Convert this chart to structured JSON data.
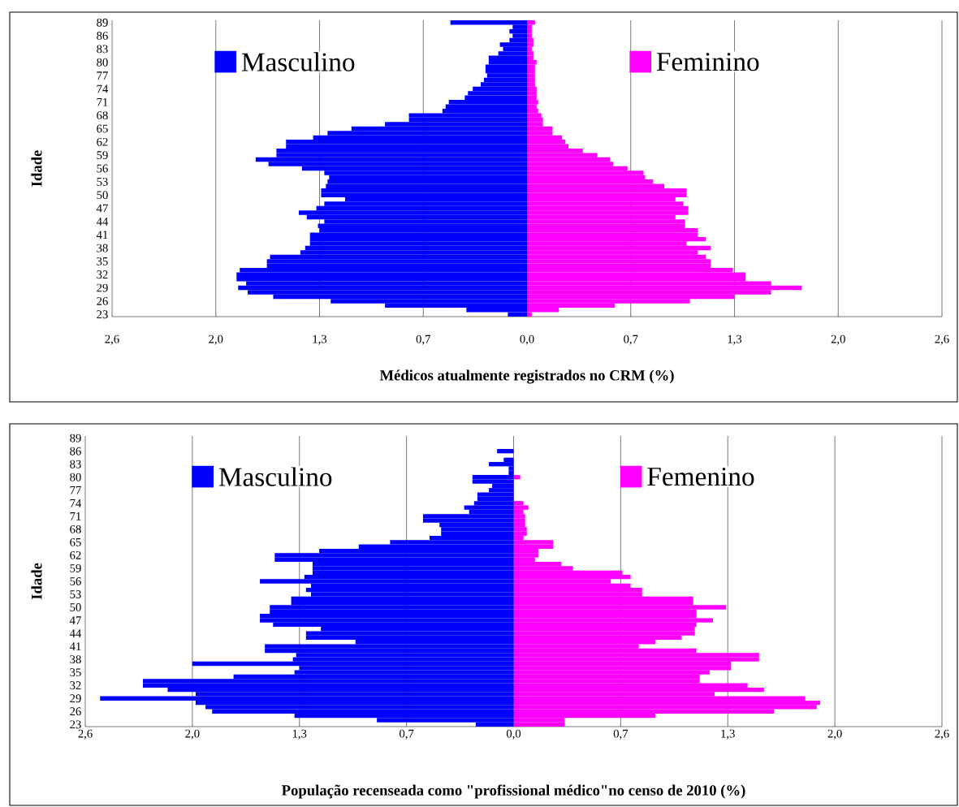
{
  "chart_data": [
    {
      "type": "bar",
      "orientation": "horizontal",
      "stacked": true,
      "xlabel": "Médicos atualmente registrados no CRM (%)",
      "ylabel": "Idade",
      "grid": "x",
      "legend": "top",
      "categories": [
        "89",
        null,
        null,
        "86",
        null,
        null,
        "83",
        null,
        null,
        "80",
        null,
        null,
        "77",
        null,
        null,
        "74",
        null,
        null,
        "71",
        null,
        null,
        "68",
        null,
        null,
        "65",
        null,
        null,
        "62",
        null,
        null,
        "59",
        null,
        null,
        "56",
        null,
        null,
        "53",
        null,
        null,
        "50",
        null,
        null,
        "47",
        null,
        null,
        "44",
        null,
        null,
        "41",
        null,
        null,
        "38",
        null,
        null,
        "35",
        null,
        null,
        "32",
        null,
        null,
        "29",
        null,
        null,
        "26",
        null,
        null,
        "23"
      ],
      "xlim": [
        -2.6,
        2.6
      ],
      "xticks": [
        {
          "value": -2.6,
          "label": "2,6"
        },
        {
          "value": -1.95,
          "label": "2,0"
        },
        {
          "value": -1.3,
          "label": "1,3"
        },
        {
          "value": -0.65,
          "label": "0,7"
        },
        {
          "value": 0,
          "label": "0,0"
        },
        {
          "value": 0.65,
          "label": "0,7"
        },
        {
          "value": 1.3,
          "label": "1,3"
        },
        {
          "value": 1.95,
          "label": "2,0"
        },
        {
          "value": 2.6,
          "label": "2,6"
        }
      ],
      "series": [
        {
          "name": "Masculino",
          "color": "#0000ff",
          "values": [
            -0.48,
            -0.09,
            -0.11,
            -0.09,
            -0.11,
            -0.17,
            -0.15,
            -0.18,
            -0.24,
            -0.24,
            -0.26,
            -0.26,
            -0.25,
            -0.27,
            -0.29,
            -0.34,
            -0.37,
            -0.39,
            -0.49,
            -0.51,
            -0.53,
            -0.74,
            -0.74,
            -0.89,
            -1.1,
            -1.25,
            -1.34,
            -1.51,
            -1.51,
            -1.57,
            -1.57,
            -1.7,
            -1.62,
            -1.41,
            -1.27,
            -1.24,
            -1.25,
            -1.26,
            -1.29,
            -1.29,
            -1.14,
            -1.27,
            -1.32,
            -1.43,
            -1.38,
            -1.27,
            -1.31,
            -1.3,
            -1.36,
            -1.36,
            -1.36,
            -1.39,
            -1.42,
            -1.61,
            -1.63,
            -1.63,
            -1.8,
            -1.82,
            -1.82,
            -1.76,
            -1.81,
            -1.75,
            -1.59,
            -1.23,
            -0.89,
            -0.38,
            -0.12
          ]
        },
        {
          "name": "Feminino",
          "color": "#ff00ff",
          "values": [
            0.05,
            0.03,
            0.03,
            0.03,
            0.04,
            0.04,
            0.03,
            0.04,
            0.04,
            0.06,
            0.05,
            0.05,
            0.05,
            0.05,
            0.05,
            0.06,
            0.06,
            0.06,
            0.07,
            0.06,
            0.07,
            0.09,
            0.1,
            0.1,
            0.16,
            0.16,
            0.22,
            0.24,
            0.26,
            0.35,
            0.44,
            0.52,
            0.54,
            0.63,
            0.73,
            0.74,
            0.79,
            0.86,
            1.0,
            1.0,
            0.93,
            0.98,
            1.01,
            1.01,
            0.93,
            0.99,
            0.99,
            1.07,
            1.07,
            1.12,
            1.0,
            1.15,
            1.07,
            1.12,
            1.15,
            1.15,
            1.29,
            1.37,
            1.37,
            1.53,
            1.72,
            1.53,
            1.3,
            1.02,
            0.55,
            0.2,
            0.03
          ]
        }
      ]
    },
    {
      "type": "bar",
      "orientation": "horizontal",
      "stacked": true,
      "xlabel": "População recenseada como \"profissional médico\"no censo de 2010 (%)",
      "ylabel": "Idade",
      "grid": "x",
      "legend": "top",
      "categories": [
        "89",
        null,
        null,
        "86",
        null,
        null,
        "83",
        null,
        null,
        "80",
        null,
        null,
        "77",
        null,
        null,
        "74",
        null,
        null,
        "71",
        null,
        null,
        "68",
        null,
        null,
        "65",
        null,
        null,
        "62",
        null,
        null,
        "59",
        null,
        null,
        "56",
        null,
        null,
        "53",
        null,
        null,
        "50",
        null,
        null,
        "47",
        null,
        null,
        "44",
        null,
        null,
        "41",
        null,
        null,
        "38",
        null,
        null,
        "35",
        null,
        null,
        "32",
        null,
        null,
        "29",
        null,
        null,
        "26",
        null,
        null,
        "23"
      ],
      "xlim": [
        -2.6,
        2.6
      ],
      "xticks": [
        {
          "value": -2.6,
          "label": "2,6"
        },
        {
          "value": -1.95,
          "label": "2,0"
        },
        {
          "value": -1.3,
          "label": "1,3"
        },
        {
          "value": -0.65,
          "label": "0,7"
        },
        {
          "value": 0,
          "label": "0,0"
        },
        {
          "value": 0.65,
          "label": "0,7"
        },
        {
          "value": 1.3,
          "label": "1,3"
        },
        {
          "value": 1.95,
          "label": "2,0"
        },
        {
          "value": 2.6,
          "label": "2,6"
        }
      ],
      "series": [
        {
          "name": "Masculino",
          "color": "#0000ff",
          "values": [
            0,
            0,
            0,
            -0.1,
            0,
            -0.06,
            -0.15,
            -0.03,
            -0.03,
            -0.25,
            -0.25,
            -0.13,
            -0.15,
            -0.22,
            -0.22,
            -0.24,
            -0.3,
            -0.27,
            -0.55,
            -0.55,
            -0.45,
            -0.44,
            -0.44,
            -0.51,
            -0.75,
            -0.94,
            -1.18,
            -1.45,
            -1.45,
            -1.22,
            -1.22,
            -1.22,
            -1.27,
            -1.54,
            -1.23,
            -1.26,
            -1.23,
            -1.35,
            -1.35,
            -1.48,
            -1.48,
            -1.54,
            -1.54,
            -1.46,
            -1.17,
            -1.26,
            -1.26,
            -0.96,
            -1.51,
            -1.51,
            -1.32,
            -1.34,
            -1.95,
            -1.3,
            -1.33,
            -1.7,
            -2.25,
            -2.25,
            -2.1,
            -1.93,
            -2.51,
            -1.93,
            -1.87,
            -1.83,
            -1.33,
            -0.83,
            -0.23
          ]
        },
        {
          "name": "Femenino",
          "color": "#ff00ff",
          "values": [
            0,
            0,
            0,
            0,
            0,
            0,
            0,
            0,
            0,
            0.04,
            0,
            0,
            0,
            0,
            0,
            0.06,
            0.09,
            0.06,
            0.07,
            0.07,
            0.07,
            0.08,
            0.08,
            0.06,
            0.24,
            0.24,
            0.15,
            0.15,
            0.13,
            0.29,
            0.36,
            0.66,
            0.71,
            0.59,
            0.71,
            0.78,
            0.78,
            1.09,
            1.09,
            1.29,
            1.11,
            1.11,
            1.21,
            1.11,
            1.1,
            1.1,
            1.02,
            0.86,
            0.76,
            1.11,
            1.49,
            1.49,
            1.32,
            1.32,
            1.19,
            1.13,
            1.13,
            1.42,
            1.52,
            1.22,
            1.77,
            1.86,
            1.84,
            1.58,
            0.86,
            0.31,
            0.31
          ]
        }
      ]
    }
  ]
}
